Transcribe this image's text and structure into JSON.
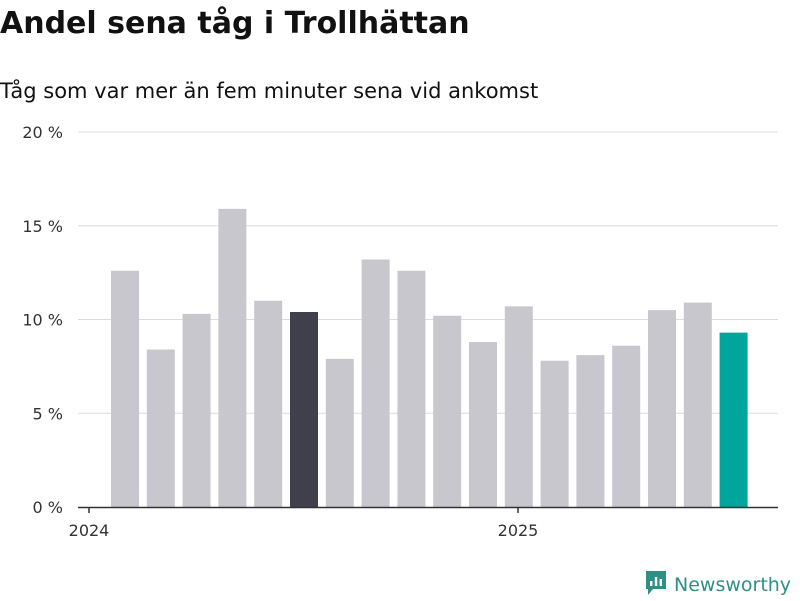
{
  "header": {
    "title": "Andel sena tåg i Trollhättan",
    "subtitle": "Tåg som var mer än fem minuter sena vid ankomst"
  },
  "brand": {
    "name": "Newsworthy",
    "icon": "newsworthy-logo-icon",
    "color": "#2e8f86"
  },
  "chart_data": {
    "type": "bar",
    "title": "Andel sena tåg i Trollhättan",
    "subtitle": "Tåg som var mer än fem minuter sena vid ankomst",
    "xlabel": "",
    "ylabel": "",
    "x_tick_labels": [
      "2024",
      "2025"
    ],
    "y_ticks": [
      0,
      5,
      10,
      15,
      20
    ],
    "y_tick_labels": [
      "0 %",
      "5 %",
      "10 %",
      "15 %",
      "20 %"
    ],
    "ylim": [
      0,
      20
    ],
    "grid": true,
    "legend": "none",
    "values": [
      12.6,
      8.4,
      10.3,
      15.9,
      11.0,
      10.4,
      7.9,
      13.2,
      12.6,
      10.2,
      8.8,
      10.7,
      7.8,
      8.1,
      8.6,
      10.5,
      10.9,
      9.3
    ],
    "highlight": {
      "dark_index": 5,
      "last_index": 17
    },
    "colors": {
      "bar": "#c8c7ce",
      "highlight_dark": "#403f4c",
      "highlight_last": "#00a59c",
      "grid": "#dcdcdc",
      "axis": "#333333",
      "tick_text": "#333333"
    }
  }
}
